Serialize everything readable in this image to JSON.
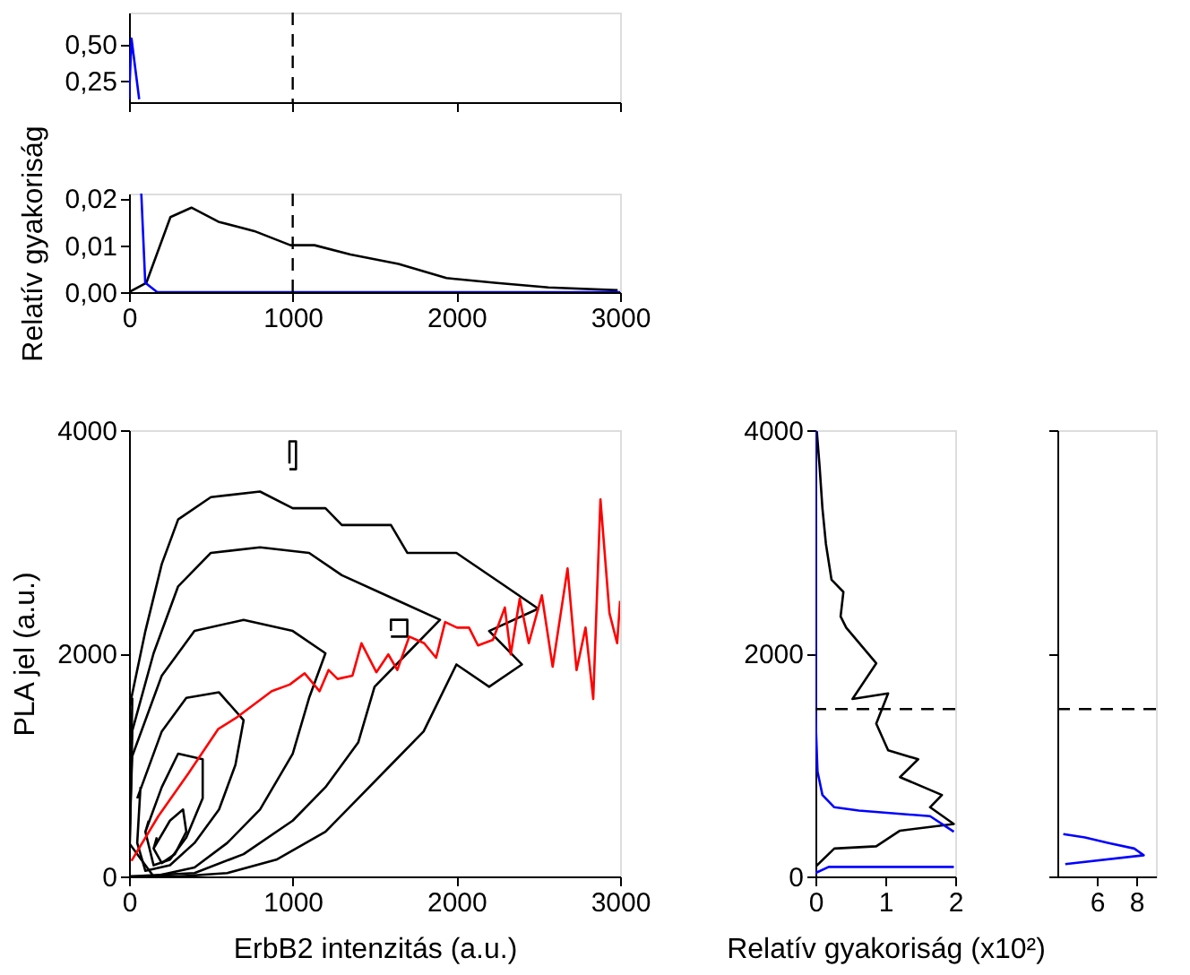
{
  "chart_data": [
    {
      "type": "line",
      "xlim": [
        0,
        3000
      ],
      "ylim": [
        0.1,
        0.72
      ],
      "yticks": [
        {
          "value": 0.25,
          "label": "0,25"
        },
        {
          "value": 0.5,
          "label": "0,50"
        }
      ],
      "xticks": [
        {
          "value": 0,
          "label": null
        },
        {
          "value": 1000,
          "label": null
        },
        {
          "value": 2000,
          "label": null
        },
        {
          "value": 3000,
          "label": null
        }
      ],
      "tick_labels": "y",
      "grid": false,
      "series": [
        {
          "color": "#0000ff",
          "x": [
            0,
            15,
            62
          ],
          "values": [
            0.12,
            0.54,
            0.12
          ]
        }
      ],
      "ref_lines": [
        {
          "axis": "x",
          "value": 1000,
          "line_style": "dashed",
          "color": "#000000"
        }
      ]
    },
    {
      "type": "line",
      "ylabel": "Relatív gyakoriság",
      "xlim": [
        0,
        3000
      ],
      "ylim": [
        0,
        0.021
      ],
      "xticks": [
        0,
        1000,
        2000,
        3000
      ],
      "yticks": [
        {
          "value": 0,
          "label": "0,00"
        },
        {
          "value": 0.01,
          "label": "0,01"
        },
        {
          "value": 0.02,
          "label": "0,02"
        }
      ],
      "grid": false,
      "series": [
        {
          "color": "#000000",
          "x": [
            0,
            106,
            253,
            381,
            546,
            766,
            986,
            1133,
            1353,
            1646,
            1939,
            2232,
            2562,
            2985
          ],
          "values": [
            0,
            0.002,
            0.016,
            0.018,
            0.015,
            0.013,
            0.01,
            0.01,
            0.008,
            0.006,
            0.003,
            0.002,
            0.001,
            0.0004
          ]
        },
        {
          "color": "#0000ff",
          "x": [
            75,
            99,
            172,
            1000,
            2000,
            3000
          ],
          "values": [
            0.021,
            0.002,
            0,
            0,
            0,
            0
          ]
        }
      ],
      "ref_lines": [
        {
          "axis": "x",
          "value": 1000,
          "line_style": "dashed",
          "color": "#000000"
        }
      ]
    },
    {
      "type": "line",
      "xlabel": "ErbB2 intenzitás (a.u.)",
      "ylabel": "PLA jel (a.u.)",
      "xlim": [
        0,
        3000
      ],
      "ylim": [
        0,
        4000
      ],
      "xticks": [
        0,
        1000,
        2000,
        3000
      ],
      "yticks": [
        0,
        2000,
        4000
      ],
      "grid": false,
      "series": [
        {
          "color": "#000000",
          "x": [
            0,
            100,
            200,
            300,
            500,
            800,
            1000,
            1200,
            1300,
            1600,
            1700,
            2000,
            2300,
            2500,
            2200,
            2400,
            2200,
            2000,
            1800,
            1600,
            1400,
            1200,
            900,
            600,
            300,
            0,
            20
          ],
          "values": [
            1500,
            2200,
            2800,
            3200,
            3400,
            3450,
            3300,
            3300,
            3150,
            3150,
            2900,
            2900,
            2600,
            2400,
            2200,
            1900,
            1700,
            1900,
            1300,
            1000,
            700,
            400,
            150,
            30,
            0,
            0,
            1600
          ]
        },
        {
          "color": "#000000",
          "x": [
            0,
            150,
            300,
            500,
            800,
            1100,
            1300,
            1600,
            1900,
            1700,
            1500,
            1400,
            1200,
            1000,
            700,
            400,
            0,
            20
          ],
          "values": [
            1200,
            2000,
            2600,
            2900,
            2950,
            2900,
            2700,
            2500,
            2300,
            2000,
            1700,
            1200,
            800,
            500,
            200,
            30,
            0,
            1300
          ]
        },
        {
          "color": "#000000",
          "x": [
            0,
            200,
            400,
            700,
            1000,
            1200,
            1100,
            1000,
            800,
            600,
            400,
            150,
            0,
            20
          ],
          "values": [
            1000,
            1800,
            2200,
            2300,
            2200,
            2000,
            1600,
            1100,
            600,
            300,
            80,
            0,
            300,
            1100
          ]
        },
        {
          "color": "#000000",
          "x": [
            50,
            200,
            350,
            550,
            700,
            650,
            550,
            400,
            250,
            100,
            50,
            70
          ],
          "values": [
            700,
            1300,
            1600,
            1650,
            1400,
            1000,
            600,
            300,
            100,
            50,
            300,
            800
          ]
        },
        {
          "color": "#000000",
          "x": [
            100,
            200,
            300,
            450,
            450,
            350,
            250,
            150,
            100,
            120
          ],
          "values": [
            400,
            800,
            1100,
            1050,
            700,
            350,
            150,
            100,
            400,
            500
          ]
        },
        {
          "color": "#000000",
          "x": [
            150,
            250,
            330,
            350,
            280,
            200,
            150,
            170
          ],
          "values": [
            250,
            500,
            600,
            400,
            200,
            120,
            250,
            350
          ]
        },
        {
          "color": "#000000",
          "x": [
            980,
            1020,
            1020,
            980,
            980
          ],
          "values": [
            3650,
            3650,
            3900,
            3900,
            3700
          ]
        },
        {
          "color": "#000000",
          "x": [
            1600,
            1700,
            1700,
            1600,
            1600
          ],
          "values": [
            2150,
            2150,
            2300,
            2300,
            2200
          ]
        },
        {
          "color": "#ff0000",
          "x": [
            15,
            179,
            361,
            544,
            653,
            872,
            982,
            1073,
            1164,
            1219,
            1274,
            1365,
            1420,
            1511,
            1584,
            1639,
            1712,
            1803,
            1876,
            1931,
            2004,
            2077,
            2132,
            2223,
            2296,
            2332,
            2387,
            2442,
            2522,
            2588,
            2679,
            2734,
            2789,
            2836,
            2880,
            2935,
            2982,
            3000
          ],
          "values": [
            140,
            540,
            920,
            1320,
            1420,
            1660,
            1720,
            1820,
            1660,
            1850,
            1770,
            1800,
            2090,
            1830,
            1990,
            1850,
            2150,
            2090,
            1960,
            2280,
            2230,
            2230,
            2070,
            2120,
            2410,
            1990,
            2490,
            2090,
            2520,
            1880,
            2760,
            1850,
            2230,
            1590,
            3380,
            2360,
            2090,
            2470
          ]
        }
      ]
    },
    {
      "type": "line",
      "xlabel": "Relatív gyakoriság (x10²)",
      "xlim": [
        0,
        2
      ],
      "ylim": [
        0,
        4000
      ],
      "xticks": [
        0,
        1,
        2
      ],
      "yticks": [
        0,
        2000,
        4000
      ],
      "grid": false,
      "series": [
        {
          "color": "#000000",
          "x": [
            0,
            0.27,
            0.87,
            1.21,
            1.98,
            1.64,
            1.81,
            1.21,
            1.47,
            1.04,
            0.87,
            1.04,
            0.53,
            0.87,
            0.44,
            0.36,
            0.4,
            0.23,
            0.15,
            0.1,
            0.06,
            0.02
          ],
          "values": [
            85,
            250,
            270,
            410,
            470,
            620,
            730,
            890,
            1050,
            1130,
            1370,
            1640,
            1590,
            1910,
            2230,
            2330,
            2550,
            2660,
            2980,
            3300,
            3670,
            3990
          ]
        },
        {
          "color": "#0000ff",
          "x": [
            0,
            0.19,
            1.98
          ],
          "values": [
            30,
            85,
            85
          ]
        },
        {
          "color": "#0000ff",
          "x": [
            1.98,
            1.64,
            0.62,
            0.27,
            0.1,
            0.03,
            0,
            0
          ],
          "values": [
            400,
            540,
            590,
            620,
            730,
            940,
            1450,
            4000
          ]
        }
      ],
      "ref_lines": [
        {
          "axis": "y",
          "value": 1500,
          "line_style": "dashed",
          "color": "#000000"
        }
      ]
    },
    {
      "type": "line",
      "xlim": [
        4,
        9
      ],
      "ylim": [
        0,
        4000
      ],
      "xticks": [
        6,
        8
      ],
      "yticks": [
        {
          "value": 0,
          "label": null
        },
        {
          "value": 2000,
          "label": null
        },
        {
          "value": 4000,
          "label": null
        }
      ],
      "tick_labels": "x",
      "grid": false,
      "series": [
        {
          "color": "#0000ff",
          "x": [
            4.4,
            8.38,
            7.9,
            6.6,
            5.4,
            4.3
          ],
          "values": [
            110,
            190,
            250,
            300,
            350,
            380
          ]
        }
      ],
      "ref_lines": [
        {
          "axis": "y",
          "value": 1500,
          "line_style": "dashed",
          "color": "#000000"
        }
      ]
    }
  ]
}
